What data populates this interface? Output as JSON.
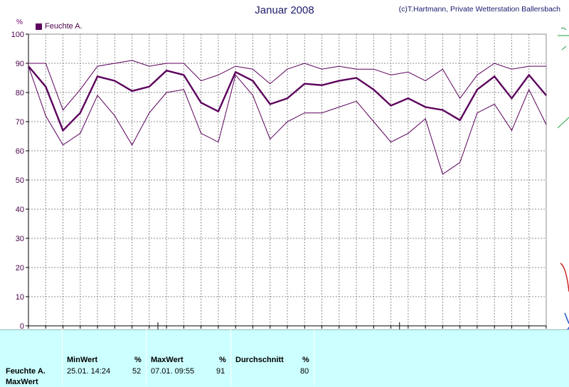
{
  "title": "Januar 2008",
  "copyright": "(c)T.Hartmann, Private Wetterstation Ballersbach",
  "unit_label": "%",
  "legend": {
    "label": "Feuchte A."
  },
  "colors": {
    "series": "#5c005c",
    "grid": "#8c8c8c",
    "panel": "#ccffff",
    "axis": "#000000"
  },
  "chart_data": {
    "type": "line",
    "title": "Januar 2008",
    "ylabel": "%",
    "ylim": [
      0,
      100
    ],
    "yticks": [
      0,
      10,
      20,
      30,
      40,
      50,
      60,
      70,
      80,
      90,
      100
    ],
    "x": [
      1,
      2,
      3,
      4,
      5,
      6,
      7,
      8,
      9,
      10,
      11,
      12,
      13,
      14,
      15,
      16,
      17,
      18,
      19,
      20,
      21,
      22,
      23,
      24,
      25,
      26,
      27,
      28,
      29,
      30,
      31
    ],
    "grid": true,
    "legend_position": "top-left",
    "moon_phases": [
      {
        "symbol": "full-moon",
        "x": 8.5
      },
      {
        "symbol": "new-moon",
        "x": 22.5
      }
    ],
    "series": [
      {
        "name": "Feuchte A.",
        "role": "mean",
        "values": [
          89,
          82,
          67,
          73,
          85.5,
          84,
          80.5,
          82,
          87.5,
          86,
          76.5,
          73.5,
          87,
          84,
          76,
          78,
          83,
          82.5,
          84,
          85,
          81,
          75.5,
          78,
          75,
          74,
          70.5,
          81,
          85.5,
          78,
          86,
          79
        ]
      },
      {
        "role": "max",
        "values": [
          90,
          90,
          74,
          81,
          89,
          90,
          91,
          89,
          90,
          90,
          84,
          86,
          89,
          88,
          83,
          88,
          90,
          88,
          89,
          88,
          88,
          86,
          87,
          84,
          88,
          78,
          86,
          90,
          88,
          89,
          89
        ]
      },
      {
        "role": "min",
        "values": [
          89,
          72,
          62,
          66,
          79,
          72,
          62,
          73,
          80,
          81,
          66,
          63,
          86,
          79,
          64,
          70,
          73,
          73,
          75,
          77,
          70,
          63,
          66,
          71,
          52,
          56,
          73,
          76,
          67,
          81,
          69
        ]
      }
    ]
  },
  "stats": {
    "row_label": "Feuchte A.",
    "row_label2": "MaxWert",
    "min_header": "MinWert",
    "min_unit": "%",
    "min_time": "25.01.  14:24",
    "min_value": "52",
    "max_header": "MaxWert",
    "max_unit": "%",
    "max_time": "07.01.  09:55",
    "max_value": "91",
    "avg_header": "Durchschnitt",
    "avg_unit": "%",
    "avg_value": "80"
  }
}
